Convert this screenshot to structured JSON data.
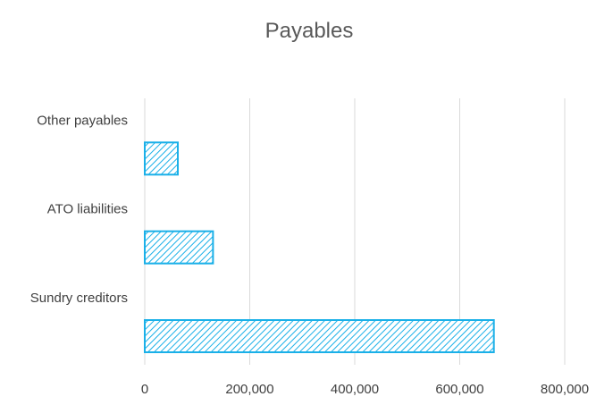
{
  "chart_data": {
    "type": "bar",
    "orientation": "horizontal",
    "title": "Payables",
    "xlabel": "",
    "ylabel": "",
    "categories": [
      "Sundry creditors",
      "ATO liabilities",
      "Other payables"
    ],
    "values": [
      665000,
      130000,
      63000
    ],
    "xlim": [
      0,
      800000
    ],
    "ticks": [
      "0",
      "200,000",
      "400,000",
      "600,000",
      "800,000"
    ],
    "tick_values": [
      0,
      200000,
      400000,
      600000,
      800000
    ],
    "grid": true,
    "legend": "none",
    "colors": {
      "bar_stroke": "#1ab0e8",
      "bar_hatch": "#1ab0e8",
      "grid": "#d9d9d9",
      "text": "#404040"
    }
  }
}
